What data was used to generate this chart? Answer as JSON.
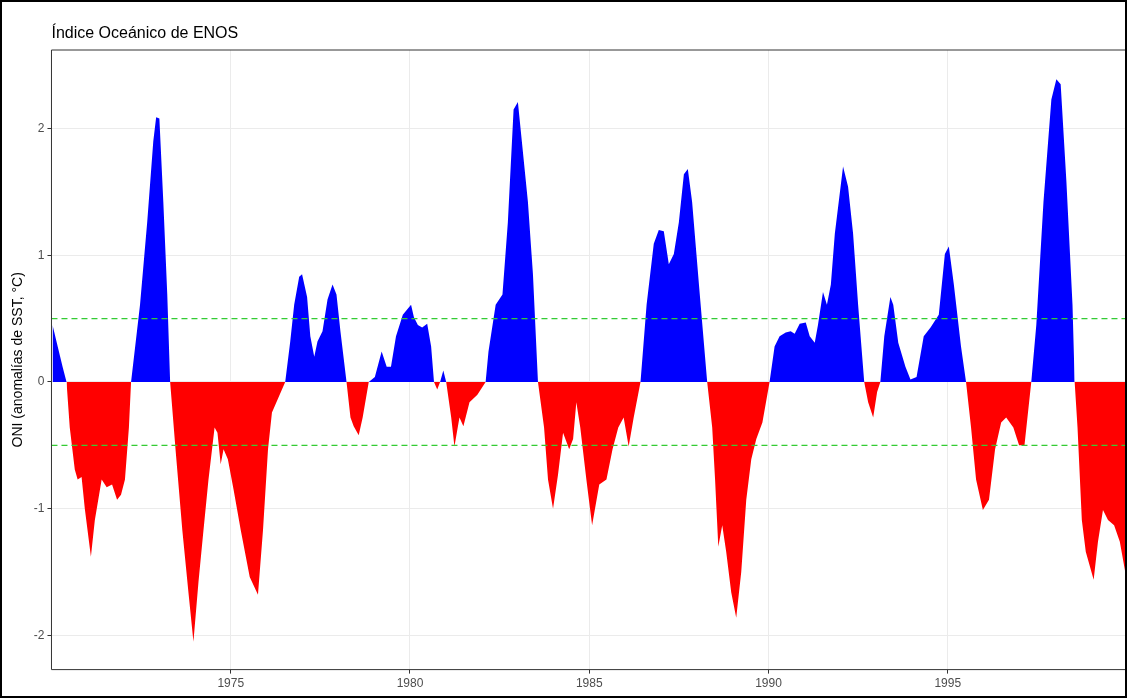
{
  "chart_data": {
    "type": "area",
    "title": "Índice Oceánico de ENOS",
    "ylabel": "ONI (anomalías de SST, °C)",
    "xlim": [
      1970,
      2000
    ],
    "xticks": [
      1975,
      1980,
      1985,
      1990,
      1995
    ],
    "ylim": [
      -2.27,
      2.62
    ],
    "yticks": [
      -2,
      -1,
      0,
      1,
      2
    ],
    "grid": true,
    "ref_lines": [
      {
        "axis": "y",
        "value": 0.5,
        "color": "#33cc33",
        "line_style": "dashed"
      },
      {
        "axis": "y",
        "value": -0.5,
        "color": "#33cc33",
        "line_style": "dashed"
      }
    ],
    "series": [
      {
        "color": "#0000ff",
        "x": [
          1970.03,
          1970.14,
          1970.31,
          1970.42,
          1972.22,
          1972.47,
          1972.67,
          1972.84,
          1972.92,
          1973.01,
          1973.12,
          1973.23,
          1973.31,
          1976.52,
          1976.66,
          1976.77,
          1976.91,
          1976.99,
          1977.13,
          1977.22,
          1977.33,
          1977.42,
          1977.56,
          1977.7,
          1977.84,
          1977.95,
          1978.06,
          1978.23,
          1978.85,
          1979.02,
          1979.21,
          1979.35,
          1979.47,
          1979.61,
          1979.8,
          1980.03,
          1980.11,
          1980.22,
          1980.34,
          1980.48,
          1980.59,
          1980.67,
          1980.84,
          1980.93,
          1981.01,
          1982.11,
          1982.19,
          1982.39,
          1982.58,
          1982.73,
          1982.89,
          1983.01,
          1983.12,
          1983.29,
          1983.43,
          1983.57,
          1986.43,
          1986.6,
          1986.8,
          1986.94,
          1987.08,
          1987.22,
          1987.36,
          1987.5,
          1987.64,
          1987.75,
          1987.87,
          1988.06,
          1988.29,
          1990.03,
          1990.17,
          1990.31,
          1990.48,
          1990.62,
          1990.73,
          1990.87,
          1991.04,
          1991.15,
          1991.29,
          1991.38,
          1991.52,
          1991.63,
          1991.74,
          1991.85,
          1992.08,
          1992.22,
          1992.36,
          1992.5,
          1992.67,
          1993.12,
          1993.23,
          1993.4,
          1993.48,
          1993.62,
          1993.82,
          1993.96,
          1994.13,
          1994.33,
          1994.52,
          1994.75,
          1994.92,
          1995.03,
          1995.17,
          1995.37,
          1995.51,
          1997.33,
          1997.47,
          1997.67,
          1997.89,
          1998.03,
          1998.15,
          1998.31,
          1998.48,
          1998.54
        ],
        "values": [
          0.45,
          0.32,
          0.12,
          0,
          0,
          0.61,
          1.26,
          1.9,
          2.09,
          2.08,
          1.42,
          0.69,
          0,
          0,
          0.32,
          0.61,
          0.83,
          0.85,
          0.67,
          0.36,
          0.2,
          0.32,
          0.4,
          0.65,
          0.77,
          0.69,
          0.4,
          0,
          0,
          0.04,
          0.24,
          0.12,
          0.12,
          0.36,
          0.53,
          0.61,
          0.51,
          0.45,
          0.43,
          0.46,
          0.28,
          0,
          0,
          0.09,
          0,
          0,
          0.24,
          0.61,
          0.69,
          1.26,
          2.15,
          2.21,
          1.9,
          1.42,
          0.85,
          0,
          0,
          0.61,
          1.09,
          1.2,
          1.19,
          0.93,
          1.01,
          1.26,
          1.64,
          1.68,
          1.42,
          0.77,
          0,
          0,
          0.28,
          0.36,
          0.39,
          0.4,
          0.38,
          0.46,
          0.47,
          0.36,
          0.31,
          0.45,
          0.71,
          0.61,
          0.77,
          1.17,
          1.7,
          1.54,
          1.17,
          0.61,
          0,
          0,
          0.36,
          0.67,
          0.61,
          0.31,
          0.12,
          0.02,
          0.04,
          0.36,
          0.43,
          0.53,
          1.01,
          1.07,
          0.77,
          0.28,
          0,
          0,
          0.45,
          1.42,
          2.23,
          2.39,
          2.35,
          1.58,
          0.61,
          0
        ]
      },
      {
        "color": "#ff0000",
        "x": [
          1970.42,
          1970.51,
          1970.65,
          1970.73,
          1970.84,
          1970.93,
          1971.1,
          1971.21,
          1971.4,
          1971.54,
          1971.69,
          1971.83,
          1971.94,
          1972.05,
          1972.16,
          1972.22,
          1973.31,
          1973.46,
          1973.65,
          1973.82,
          1973.96,
          1974.1,
          1974.24,
          1974.38,
          1974.55,
          1974.63,
          1974.72,
          1974.8,
          1974.92,
          1975.08,
          1975.28,
          1975.53,
          1975.76,
          1975.9,
          1976.04,
          1976.15,
          1976.52,
          1978.23,
          1978.34,
          1978.43,
          1978.57,
          1978.68,
          1978.85,
          1980.67,
          1980.76,
          1980.84,
          1981.01,
          1981.15,
          1981.24,
          1981.38,
          1981.49,
          1981.66,
          1981.88,
          1982.11,
          1983.57,
          1983.74,
          1983.85,
          1983.99,
          1984.13,
          1984.27,
          1984.44,
          1984.55,
          1984.64,
          1984.75,
          1984.92,
          1985.08,
          1985.28,
          1985.48,
          1985.65,
          1985.81,
          1985.96,
          1986.1,
          1986.24,
          1986.43,
          1988.29,
          1988.43,
          1988.51,
          1988.6,
          1988.71,
          1988.82,
          1988.96,
          1989.1,
          1989.24,
          1989.38,
          1989.52,
          1989.66,
          1989.83,
          1990.03,
          1992.67,
          1992.78,
          1992.92,
          1993.03,
          1993.12,
          1995.51,
          1995.65,
          1995.79,
          1995.98,
          1996.15,
          1996.32,
          1996.49,
          1996.63,
          1996.83,
          1996.99,
          1997.14,
          1997.33,
          1998.54,
          1998.62,
          1998.74,
          1998.85,
          1999.07,
          1999.19,
          1999.33,
          1999.47,
          1999.64,
          1999.8,
          2000.0
        ],
        "values": [
          0,
          -0.36,
          -0.69,
          -0.77,
          -0.75,
          -1.0,
          -1.38,
          -1.09,
          -0.77,
          -0.83,
          -0.81,
          -0.93,
          -0.89,
          -0.77,
          -0.36,
          0,
          0,
          -0.53,
          -1.17,
          -1.66,
          -2.05,
          -1.58,
          -1.17,
          -0.77,
          -0.36,
          -0.4,
          -0.65,
          -0.53,
          -0.61,
          -0.85,
          -1.17,
          -1.54,
          -1.68,
          -1.17,
          -0.53,
          -0.24,
          0,
          0,
          -0.28,
          -0.35,
          -0.42,
          -0.28,
          0,
          0,
          -0.06,
          0,
          0,
          -0.28,
          -0.51,
          -0.28,
          -0.35,
          -0.16,
          -0.1,
          0,
          0,
          -0.36,
          -0.77,
          -1.0,
          -0.73,
          -0.4,
          -0.53,
          -0.45,
          -0.16,
          -0.36,
          -0.77,
          -1.13,
          -0.81,
          -0.77,
          -0.53,
          -0.36,
          -0.28,
          -0.51,
          -0.28,
          0,
          0,
          -0.36,
          -0.77,
          -1.3,
          -1.13,
          -1.34,
          -1.66,
          -1.86,
          -1.5,
          -0.93,
          -0.61,
          -0.45,
          -0.32,
          0,
          0,
          -0.16,
          -0.28,
          -0.08,
          0,
          0,
          -0.36,
          -0.77,
          -1.01,
          -0.93,
          -0.53,
          -0.32,
          -0.28,
          -0.36,
          -0.5,
          -0.5,
          0,
          0,
          -0.36,
          -1.09,
          -1.34,
          -1.56,
          -1.26,
          -1.01,
          -1.09,
          -1.13,
          -1.26,
          -1.58
        ]
      }
    ]
  }
}
